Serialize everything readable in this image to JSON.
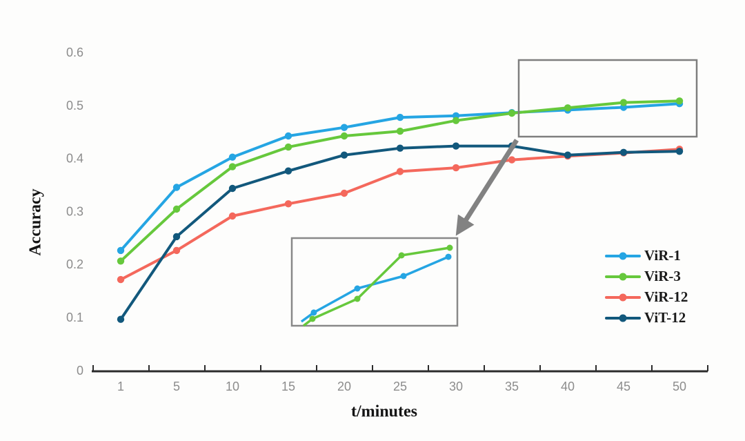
{
  "chart_data": {
    "type": "line",
    "title": "",
    "xlabel": "t/minutes",
    "ylabel": "Accuracy",
    "x_tick_labels": [
      "1",
      "5",
      "10",
      "15",
      "20",
      "25",
      "30",
      "35",
      "40",
      "45",
      "50"
    ],
    "y_ticks": [
      0,
      0.1,
      0.2,
      0.3,
      0.4,
      0.5,
      0.6
    ],
    "y_tick_labels": [
      "0",
      "0.1",
      "0.2",
      "0.3",
      "0.4",
      "0.5",
      "0.6"
    ],
    "ylim": [
      0,
      0.6
    ],
    "grid": false,
    "legend_position": "right-center",
    "series": [
      {
        "name": "ViR-1",
        "color": "#25A5E3",
        "values": [
          0.228,
          0.347,
          0.404,
          0.444,
          0.46,
          0.479,
          0.482,
          0.488,
          0.493,
          0.498,
          0.505
        ]
      },
      {
        "name": "ViR-3",
        "color": "#66C83C",
        "values": [
          0.208,
          0.306,
          0.386,
          0.423,
          0.444,
          0.453,
          0.473,
          0.487,
          0.497,
          0.507,
          0.51
        ]
      },
      {
        "name": "ViR-12",
        "color": "#F4685C",
        "values": [
          0.173,
          0.228,
          0.293,
          0.316,
          0.336,
          0.377,
          0.384,
          0.399,
          0.406,
          0.412,
          0.419
        ]
      },
      {
        "name": "ViT-12",
        "color": "#12587C",
        "values": [
          0.098,
          0.254,
          0.345,
          0.378,
          0.408,
          0.421,
          0.425,
          0.425,
          0.408,
          0.413,
          0.415
        ]
      }
    ],
    "annotations": {
      "highlight_box": {
        "x_labels": [
          "35",
          "40",
          "45",
          "50"
        ],
        "series": [
          "ViR-1",
          "ViR-3"
        ]
      },
      "zoom_inset": {
        "series": [
          {
            "name": "ViR-1",
            "color": "#25A5E3",
            "points_norm": [
              [
                0.058,
                0.953
              ],
              [
                0.133,
                0.85
              ],
              [
                0.396,
                0.575
              ],
              [
                0.675,
                0.433
              ],
              [
                0.946,
                0.213
              ]
            ]
          },
          {
            "name": "ViR-3",
            "color": "#66C83C",
            "points_norm": [
              [
                0.071,
                1.0
              ],
              [
                0.125,
                0.921
              ],
              [
                0.396,
                0.693
              ],
              [
                0.663,
                0.197
              ],
              [
                0.954,
                0.11
              ]
            ]
          }
        ]
      },
      "arrow": {
        "from": "highlight_box",
        "to": "zoom_inset",
        "color": "#828282"
      }
    },
    "colors": {
      "axis": "#2b2b2b",
      "tick_label": "#8c8c8c",
      "annotation_gray": "#828282",
      "box_border": "#7e7e7e",
      "background": "#fdfdfc"
    }
  }
}
